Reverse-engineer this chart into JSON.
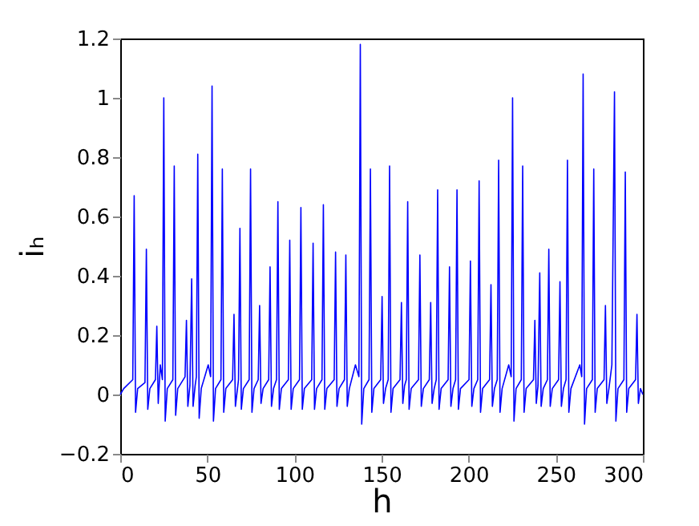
{
  "chart_data": {
    "type": "line",
    "xlabel": "h",
    "ylabel": "iₕ",
    "xlim": [
      0,
      300
    ],
    "ylim": [
      -0.2,
      1.2
    ],
    "xticks": [
      0,
      50,
      100,
      150,
      200,
      250,
      300
    ],
    "yticks": [
      -0.2,
      0,
      0.2,
      0.4,
      0.6,
      0.8,
      1,
      1.2
    ],
    "x": [
      0,
      2,
      7.2,
      8,
      8.8,
      10,
      14.2,
      15,
      15.8,
      17,
      20.2,
      21,
      21.8,
      23,
      24.2,
      25,
      25.8,
      27,
      30.2,
      31,
      31.8,
      33,
      37.2,
      38,
      38.8,
      40,
      41,
      41.8,
      43,
      43.7,
      44.5,
      45.3,
      46.5,
      50.5,
      51.9,
      52.7,
      53.5,
      54.7,
      57.8,
      58.6,
      59.4,
      60.6,
      64.5,
      65.3,
      66.1,
      67.3,
      67.9,
      68.7,
      69.5,
      70.7,
      74,
      74.8,
      75.6,
      76.8,
      79.2,
      80,
      80.8,
      82,
      85.2,
      86,
      86.8,
      88,
      89.7,
      90.5,
      91.3,
      92.5,
      96.5,
      97.3,
      98.1,
      99.3,
      102.9,
      103.7,
      104.5,
      105.7,
      109.9,
      110.7,
      111.5,
      112.7,
      115.8,
      116.6,
      117.4,
      118.6,
      122.8,
      123.6,
      124.4,
      125.6,
      128.7,
      129.5,
      130.3,
      131.5,
      135,
      137,
      137.8,
      138.6,
      139.8,
      142.8,
      143.6,
      144.4,
      145.6,
      149.5,
      150.3,
      151.1,
      152.3,
      153.8,
      154.6,
      155.4,
      156.6,
      160.6,
      161.4,
      162.2,
      163.2,
      164.2,
      165,
      165.8,
      167,
      171.2,
      172,
      172.8,
      174,
      177.4,
      178.2,
      179,
      180.2,
      181.4,
      182.2,
      183,
      184.2,
      188.2,
      189,
      189.8,
      191,
      192.5,
      193.3,
      194.1,
      195.3,
      200.2,
      201,
      201.8,
      203,
      205.2,
      206,
      206.8,
      208,
      212,
      212.8,
      213.6,
      214.8,
      216.4,
      217.2,
      218,
      219.2,
      223,
      224.4,
      225.2,
      226,
      227.2,
      230.2,
      231,
      231.8,
      233,
      237.2,
      238,
      238.8,
      239.8,
      240.8,
      241.6,
      242.8,
      245.2,
      246,
      246.8,
      248,
      251.6,
      252.4,
      253.2,
      254.4,
      255.9,
      256.7,
      257.5,
      258.7,
      263.8,
      264.9,
      265.7,
      266.5,
      267.7,
      271,
      271.8,
      272.6,
      273.8,
      277.7,
      278.5,
      279.3,
      280.5,
      282.2,
      283.7,
      284.5,
      285.7,
      289.1,
      289.9,
      290.7,
      291.9,
      295.8,
      296.6,
      297.4,
      298.6,
      300
    ],
    "series": [
      {
        "color": "#0000ff",
        "values": [
          0.0,
          0.02,
          0.05,
          0.67,
          -0.06,
          0.02,
          0.04,
          0.49,
          -0.05,
          0.02,
          0.05,
          0.23,
          -0.03,
          0.1,
          0.05,
          1.0,
          -0.09,
          0.02,
          0.05,
          0.77,
          -0.07,
          0.02,
          0.06,
          0.25,
          -0.04,
          0.03,
          0.39,
          -0.04,
          0.03,
          0.06,
          0.81,
          -0.08,
          0.02,
          0.1,
          0.06,
          1.04,
          -0.09,
          0.02,
          0.05,
          0.76,
          -0.06,
          0.02,
          0.05,
          0.27,
          -0.04,
          0.02,
          0.05,
          0.56,
          -0.05,
          0.02,
          0.05,
          0.76,
          -0.06,
          0.02,
          0.05,
          0.3,
          -0.03,
          0.02,
          0.05,
          0.43,
          -0.04,
          0.02,
          0.05,
          0.65,
          -0.05,
          0.02,
          0.05,
          0.52,
          -0.05,
          0.02,
          0.05,
          0.63,
          -0.05,
          0.02,
          0.05,
          0.51,
          -0.05,
          0.02,
          0.05,
          0.64,
          -0.05,
          0.02,
          0.05,
          0.48,
          -0.04,
          0.02,
          0.05,
          0.47,
          -0.04,
          0.02,
          0.1,
          0.06,
          1.18,
          -0.1,
          0.02,
          0.05,
          0.76,
          -0.06,
          0.02,
          0.05,
          0.33,
          -0.03,
          0.02,
          0.05,
          0.77,
          -0.06,
          0.02,
          0.05,
          0.31,
          -0.03,
          0.03,
          0.05,
          0.65,
          -0.05,
          0.02,
          0.05,
          0.47,
          -0.04,
          0.02,
          0.05,
          0.31,
          -0.03,
          0.02,
          0.05,
          0.69,
          -0.05,
          0.02,
          0.05,
          0.43,
          -0.04,
          0.02,
          0.05,
          0.69,
          -0.05,
          0.02,
          0.05,
          0.45,
          -0.04,
          0.02,
          0.05,
          0.72,
          -0.06,
          0.02,
          0.05,
          0.37,
          -0.04,
          0.02,
          0.05,
          0.79,
          -0.06,
          0.02,
          0.1,
          0.06,
          1.0,
          -0.09,
          0.02,
          0.05,
          0.77,
          -0.06,
          0.02,
          0.05,
          0.25,
          -0.03,
          0.03,
          0.41,
          -0.04,
          0.02,
          0.05,
          0.49,
          -0.04,
          0.02,
          0.05,
          0.38,
          -0.04,
          0.02,
          0.05,
          0.79,
          -0.06,
          0.02,
          0.1,
          0.06,
          1.08,
          -0.1,
          0.02,
          0.05,
          0.76,
          -0.06,
          0.02,
          0.05,
          0.3,
          -0.03,
          0.02,
          0.1,
          1.02,
          -0.09,
          0.02,
          0.05,
          0.75,
          -0.06,
          0.02,
          0.05,
          0.27,
          -0.03,
          0.02,
          0.0
        ]
      }
    ]
  }
}
